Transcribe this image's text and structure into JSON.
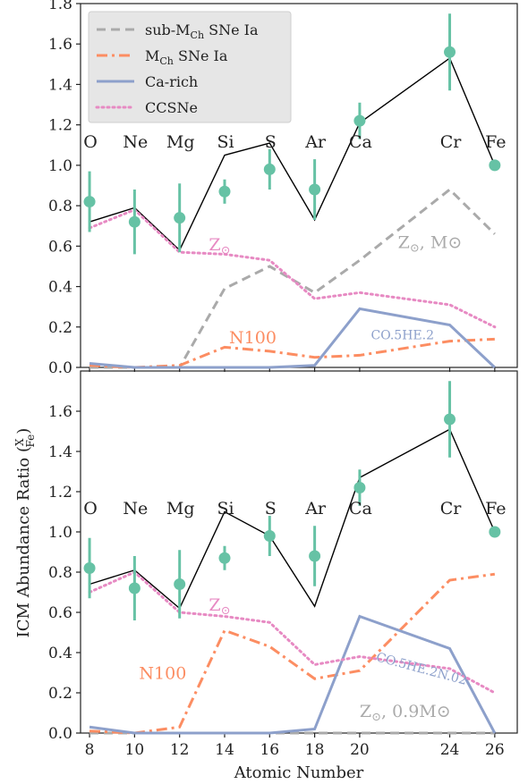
{
  "chart_data": [
    {
      "type": "line",
      "panel": "top",
      "x_ticks": [
        8,
        10,
        12,
        14,
        16,
        18,
        20,
        24,
        26
      ],
      "xlim": [
        7.6,
        27
      ],
      "ylim": [
        0,
        1.8
      ],
      "yticks": [
        "0.0",
        "0.2",
        "0.4",
        "0.6",
        "0.8",
        "1.0",
        "1.2",
        "1.4",
        "1.6",
        "1.8"
      ],
      "element_labels": [
        {
          "text": "O",
          "x": 8
        },
        {
          "text": "Ne",
          "x": 10
        },
        {
          "text": "Mg",
          "x": 12
        },
        {
          "text": "Si",
          "x": 14
        },
        {
          "text": "S",
          "x": 16
        },
        {
          "text": "Ar",
          "x": 18
        },
        {
          "text": "Ca",
          "x": 20
        },
        {
          "text": "Cr",
          "x": 24
        },
        {
          "text": "Fe",
          "x": 26
        }
      ],
      "legend": {
        "position": "upper-left",
        "entries": [
          {
            "label_main": "sub-M",
            "label_sub": "Ch",
            "label_rest": " SNe Ia",
            "series": "sub_mch"
          },
          {
            "label_main": "M",
            "label_sub": "Ch",
            "label_rest": " SNe Ia",
            "series": "mch"
          },
          {
            "label_main": "Ca-rich",
            "label_sub": "",
            "label_rest": "",
            "series": "ca_rich"
          },
          {
            "label_main": "CCSNe",
            "label_sub": "",
            "label_rest": "",
            "series": "ccsne"
          }
        ]
      },
      "observed": {
        "x": [
          8,
          10,
          12,
          14,
          16,
          18,
          20,
          24,
          26
        ],
        "y": [
          0.82,
          0.72,
          0.74,
          0.87,
          0.98,
          0.88,
          1.22,
          1.56,
          1.0
        ],
        "err": [
          0.15,
          0.16,
          0.17,
          0.06,
          0.1,
          0.15,
          0.09,
          0.19,
          0.0
        ],
        "color": "#66c2a5"
      },
      "series": [
        {
          "key": "total",
          "x": [
            8,
            10,
            12,
            14,
            16,
            18,
            20,
            24,
            26
          ],
          "y": [
            0.72,
            0.79,
            0.58,
            1.05,
            1.11,
            0.73,
            1.21,
            1.53,
            1.0
          ],
          "color": "#000000",
          "style": "solid"
        },
        {
          "key": "sub_mch",
          "x": [
            8,
            10,
            12,
            14,
            16,
            18,
            20,
            24,
            26
          ],
          "y": [
            0.0,
            0.0,
            0.0,
            0.39,
            0.5,
            0.37,
            0.53,
            0.88,
            0.66
          ],
          "color": "#aaaaaa",
          "style": "dashed"
        },
        {
          "key": "mch",
          "x": [
            8,
            10,
            12,
            14,
            16,
            18,
            20,
            24,
            26
          ],
          "y": [
            0.01,
            0.0,
            0.01,
            0.1,
            0.08,
            0.05,
            0.06,
            0.13,
            0.14
          ],
          "color": "#fc8d62",
          "style": "dashdot"
        },
        {
          "key": "ca_rich",
          "x": [
            8,
            10,
            12,
            14,
            16,
            18,
            20,
            24,
            26
          ],
          "y": [
            0.02,
            0.0,
            0.0,
            0.0,
            0.0,
            0.01,
            0.29,
            0.21,
            0.0
          ],
          "color": "#8da0cb",
          "style": "solid"
        },
        {
          "key": "ccsne",
          "x": [
            8,
            10,
            12,
            14,
            16,
            18,
            20,
            24,
            26
          ],
          "y": [
            0.69,
            0.78,
            0.57,
            0.56,
            0.53,
            0.34,
            0.37,
            0.31,
            0.2
          ],
          "color": "#e78ac3",
          "style": "dotted"
        }
      ],
      "annotations": [
        {
          "main": "Z",
          "sub": "⊙",
          "rest": "",
          "x": 13.3,
          "y": 0.58,
          "color": "#e78ac3",
          "size": 19
        },
        {
          "main": "N100",
          "sub": "",
          "rest": "",
          "x": 14.2,
          "y": 0.12,
          "color": "#fc8d62",
          "size": 19
        },
        {
          "main": "CO.5HE.2",
          "sub": "",
          "rest": "",
          "x": 20.5,
          "y": 0.14,
          "color": "#8da0cb",
          "size": 14
        },
        {
          "main": "Z",
          "sub": "⊙",
          "rest": ", M⊙",
          "x": 21.7,
          "y": 0.59,
          "color": "#aaaaaa",
          "size": 19
        }
      ]
    },
    {
      "type": "line",
      "panel": "bottom",
      "x_ticks": [
        8,
        10,
        12,
        14,
        16,
        18,
        20,
        24,
        26
      ],
      "xlim": [
        7.6,
        27
      ],
      "ylim": [
        0,
        1.8
      ],
      "yticks": [
        "0.0",
        "0.2",
        "0.4",
        "0.6",
        "0.8",
        "1.0",
        "1.2",
        "1.4",
        "1.6"
      ],
      "xlabel": "Atomic Number",
      "ylabel": "ICM Abundance Ratio",
      "ylabel_frac_num": "X",
      "ylabel_frac_den": "Fe",
      "element_labels": [
        {
          "text": "O",
          "x": 8
        },
        {
          "text": "Ne",
          "x": 10
        },
        {
          "text": "Mg",
          "x": 12
        },
        {
          "text": "Si",
          "x": 14
        },
        {
          "text": "S",
          "x": 16
        },
        {
          "text": "Ar",
          "x": 18
        },
        {
          "text": "Ca",
          "x": 20
        },
        {
          "text": "Cr",
          "x": 24
        },
        {
          "text": "Fe",
          "x": 26
        }
      ],
      "observed": {
        "x": [
          8,
          10,
          12,
          14,
          16,
          18,
          20,
          24,
          26
        ],
        "y": [
          0.82,
          0.72,
          0.74,
          0.87,
          0.98,
          0.88,
          1.22,
          1.56,
          1.0
        ],
        "err": [
          0.15,
          0.16,
          0.17,
          0.06,
          0.1,
          0.15,
          0.09,
          0.19,
          0.0
        ],
        "color": "#66c2a5"
      },
      "series": [
        {
          "key": "total",
          "x": [
            8,
            10,
            12,
            14,
            16,
            18,
            20,
            24,
            26
          ],
          "y": [
            0.74,
            0.81,
            0.62,
            1.1,
            0.98,
            0.63,
            1.27,
            1.51,
            1.0
          ],
          "color": "#000000",
          "style": "solid"
        },
        {
          "key": "sub_mch",
          "x": [
            8,
            10,
            12,
            14,
            16,
            18,
            20,
            24,
            26
          ],
          "y": [
            0.0,
            0.0,
            0.0,
            0.0,
            0.0,
            0.0,
            0.0,
            0.0,
            0.0
          ],
          "color": "#aaaaaa",
          "style": "dashed"
        },
        {
          "key": "mch",
          "x": [
            8,
            10,
            12,
            14,
            16,
            18,
            20,
            24,
            26
          ],
          "y": [
            0.01,
            0.0,
            0.03,
            0.51,
            0.43,
            0.27,
            0.31,
            0.76,
            0.79
          ],
          "color": "#fc8d62",
          "style": "dashdot"
        },
        {
          "key": "ca_rich",
          "x": [
            8,
            10,
            12,
            14,
            16,
            18,
            20,
            24,
            26
          ],
          "y": [
            0.03,
            0.0,
            0.0,
            0.0,
            0.0,
            0.02,
            0.58,
            0.42,
            0.0
          ],
          "color": "#8da0cb",
          "style": "solid"
        },
        {
          "key": "ccsne",
          "x": [
            8,
            10,
            12,
            14,
            16,
            18,
            20,
            24,
            26
          ],
          "y": [
            0.7,
            0.8,
            0.6,
            0.58,
            0.55,
            0.34,
            0.38,
            0.32,
            0.2
          ],
          "color": "#e78ac3",
          "style": "dotted"
        }
      ],
      "annotations": [
        {
          "main": "Z",
          "sub": "⊙",
          "rest": "",
          "x": 13.3,
          "y": 0.61,
          "color": "#e78ac3",
          "size": 19
        },
        {
          "main": "N100",
          "sub": "",
          "rest": "",
          "x": 10.2,
          "y": 0.27,
          "color": "#fc8d62",
          "size": 19
        },
        {
          "main": "CO.5HE.2N.02",
          "sub": "",
          "rest": "",
          "x": 20.7,
          "y": 0.36,
          "color": "#8da0cb",
          "size": 14,
          "rotate": 15
        },
        {
          "main": "Z",
          "sub": "⊙",
          "rest": ", 0.9M⊙",
          "x": 20.0,
          "y": 0.08,
          "color": "#aaaaaa",
          "size": 19
        }
      ]
    }
  ]
}
